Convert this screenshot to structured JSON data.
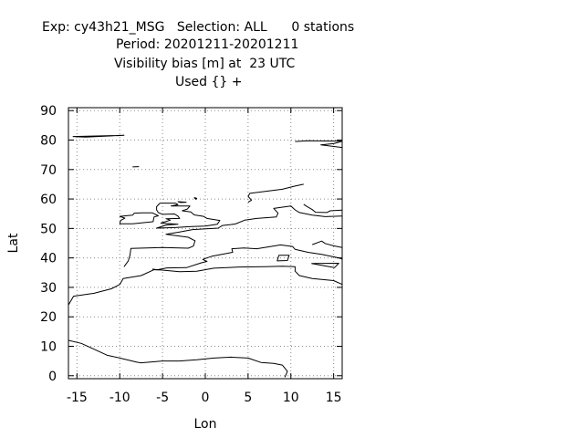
{
  "title": {
    "line1": "Exp: cy43h21_MSG   Selection: ALL      0 stations",
    "line2": "Period: 20201211-20201211",
    "line3": "Visibility bias [m] at  23 UTC",
    "line4": "Used {} +"
  },
  "chart_data": {
    "type": "scatter",
    "title": "Exp: cy43h21_MSG   Selection: ALL      0 stations",
    "subtitle": [
      "Period: 20201211-20201211",
      "Visibility bias [m] at  23 UTC",
      "Used {} +"
    ],
    "xlabel": "Lon",
    "ylabel": "Lat",
    "xlim": [
      -16,
      16
    ],
    "ylim": [
      -1,
      91
    ],
    "xticks": [
      -15,
      -10,
      -5,
      0,
      5,
      10,
      15
    ],
    "yticks": [
      0,
      10,
      20,
      30,
      40,
      50,
      60,
      70,
      80,
      90
    ],
    "grid": true,
    "series": [],
    "stations": 0,
    "coastlines": [
      [
        [
          -16,
          12
        ],
        [
          -14.5,
          11
        ],
        [
          -13,
          9
        ],
        [
          -11.5,
          7
        ],
        [
          -10,
          6
        ],
        [
          -8,
          4.6
        ],
        [
          -7.5,
          4.4
        ],
        [
          -5,
          5
        ],
        [
          -3,
          5
        ],
        [
          -1,
          5.4
        ],
        [
          1,
          6
        ],
        [
          3,
          6.3
        ],
        [
          5,
          6
        ],
        [
          6.5,
          4.5
        ],
        [
          8,
          4.2
        ],
        [
          9,
          3.6
        ],
        [
          9.6,
          1.5
        ],
        [
          9.3,
          -0.5
        ]
      ],
      [
        [
          -16,
          24
        ],
        [
          -15.4,
          27
        ],
        [
          -13,
          28
        ],
        [
          -11,
          29.5
        ],
        [
          -10,
          31
        ],
        [
          -9.6,
          33
        ],
        [
          -7.5,
          34
        ],
        [
          -6,
          36
        ],
        [
          -5.2,
          35.9
        ],
        [
          -3,
          35.3
        ],
        [
          -1,
          35.5
        ],
        [
          1,
          36.5
        ],
        [
          4,
          36.9
        ],
        [
          7,
          37
        ],
        [
          9,
          37.2
        ],
        [
          10.5,
          37
        ],
        [
          10.5,
          35.5
        ],
        [
          11,
          34
        ],
        [
          12.5,
          33
        ],
        [
          15,
          32.3
        ],
        [
          16,
          31
        ]
      ],
      [
        [
          -9.5,
          37
        ],
        [
          -9,
          39
        ],
        [
          -8.8,
          41
        ],
        [
          -8.7,
          43.2
        ],
        [
          -5,
          43.5
        ],
        [
          -2,
          43.3
        ],
        [
          -1.4,
          44
        ],
        [
          -1.2,
          45.8
        ],
        [
          -2,
          47
        ],
        [
          -4.6,
          48
        ],
        [
          -3,
          48.8
        ],
        [
          -1.5,
          49.6
        ],
        [
          1.5,
          50.1
        ],
        [
          2,
          51
        ],
        [
          3.5,
          51.5
        ],
        [
          4.6,
          52.8
        ],
        [
          6,
          53.4
        ],
        [
          8.3,
          53.9
        ],
        [
          8.5,
          55.2
        ],
        [
          8,
          56.8
        ],
        [
          10,
          57.6
        ],
        [
          10.5,
          56.3
        ],
        [
          11,
          55.4
        ],
        [
          12.5,
          54.5
        ],
        [
          14,
          54
        ],
        [
          16,
          54.2
        ]
      ],
      [
        [
          -6.2,
          36.2
        ],
        [
          -5.6,
          36
        ],
        [
          -4.5,
          36.6
        ],
        [
          -2.2,
          36.7
        ],
        [
          -0.5,
          38.3
        ],
        [
          0.2,
          38.8
        ],
        [
          -0.3,
          39.5
        ],
        [
          0.8,
          40.6
        ],
        [
          3.2,
          41.9
        ],
        [
          3.1,
          43.1
        ],
        [
          4.5,
          43.4
        ],
        [
          6,
          43.1
        ],
        [
          7.5,
          43.8
        ],
        [
          8.8,
          44.4
        ],
        [
          10.2,
          43.9
        ],
        [
          10.5,
          42.9
        ],
        [
          12,
          41.9
        ],
        [
          13.6,
          41.2
        ],
        [
          15.6,
          40
        ],
        [
          16,
          39.6
        ]
      ],
      [
        [
          12.5,
          44.5
        ],
        [
          13.6,
          45.7
        ],
        [
          14,
          44.9
        ],
        [
          15,
          44.1
        ],
        [
          16,
          43.5
        ]
      ],
      [
        [
          -5.3,
          58.6
        ],
        [
          -3.5,
          58.6
        ],
        [
          -3.2,
          58.1
        ],
        [
          -4,
          57.6
        ],
        [
          -1.8,
          57.6
        ],
        [
          -2.1,
          56.6
        ],
        [
          -2.7,
          56
        ],
        [
          -1.7,
          55.6
        ],
        [
          -1.3,
          54.6
        ],
        [
          -0.2,
          54.1
        ],
        [
          0.2,
          53.4
        ],
        [
          1.7,
          52.7
        ],
        [
          1.4,
          51.4
        ],
        [
          0,
          50.8
        ],
        [
          -1.9,
          50.6
        ],
        [
          -3.5,
          50.3
        ],
        [
          -5.7,
          50.1
        ],
        [
          -4.5,
          51.2
        ],
        [
          -3.2,
          51.4
        ],
        [
          -5.2,
          51.8
        ],
        [
          -4.1,
          52.8
        ],
        [
          -4.6,
          53.3
        ],
        [
          -3,
          53.4
        ],
        [
          -3.2,
          54.2
        ],
        [
          -3.6,
          54.9
        ],
        [
          -5,
          54.8
        ],
        [
          -5.5,
          55.4
        ],
        [
          -5.7,
          56.3
        ],
        [
          -5.7,
          57.4
        ],
        [
          -5.3,
          58.6
        ]
      ],
      [
        [
          -6.2,
          55.3
        ],
        [
          -5.5,
          54.3
        ],
        [
          -6,
          53.9
        ],
        [
          -6.1,
          52.3
        ],
        [
          -6.4,
          52.2
        ],
        [
          -8.5,
          51.6
        ],
        [
          -10,
          51.6
        ],
        [
          -9.9,
          52.7
        ],
        [
          -9.4,
          53.5
        ],
        [
          -10,
          54.1
        ],
        [
          -8.5,
          54.5
        ],
        [
          -8.3,
          55.2
        ],
        [
          -7.4,
          55.3
        ],
        [
          -6.2,
          55.3
        ]
      ],
      [
        [
          5,
          58.9
        ],
        [
          5.4,
          59.6
        ],
        [
          5,
          60.9
        ],
        [
          5.2,
          61.9
        ],
        [
          7,
          62.6
        ],
        [
          9,
          63.3
        ],
        [
          10.5,
          64.4
        ],
        [
          11.5,
          65
        ]
      ],
      [
        [
          11.5,
          58.2
        ],
        [
          11.8,
          57.6
        ],
        [
          12.5,
          56.4
        ],
        [
          12.9,
          55.5
        ],
        [
          14.2,
          55.4
        ],
        [
          14.6,
          56
        ],
        [
          16,
          56.2
        ]
      ],
      [
        [
          -15.5,
          81.2
        ],
        [
          -9.5,
          81.6
        ],
        [
          -14,
          81
        ],
        [
          -15.5,
          81.2
        ]
      ],
      [
        [
          10.5,
          79.5
        ],
        [
          12,
          79.8
        ],
        [
          16,
          79.6
        ],
        [
          15,
          78.8
        ],
        [
          13.5,
          78.4
        ],
        [
          16,
          77.5
        ]
      ],
      [
        [
          -2.2,
          58.9
        ],
        [
          -3.2,
          59.1
        ],
        [
          -2.9,
          58.8
        ],
        [
          -2.2,
          58.9
        ]
      ],
      [
        [
          -1.3,
          60.5
        ],
        [
          -1,
          60.2
        ],
        [
          -1.1,
          59.9
        ],
        [
          -1.3,
          60.5
        ]
      ],
      [
        [
          -8.5,
          70.9
        ],
        [
          -7.8,
          71
        ],
        [
          -8.5,
          70.9
        ]
      ],
      [
        [
          8.6,
          40.9
        ],
        [
          9.8,
          40.9
        ],
        [
          9.6,
          39.1
        ],
        [
          8.4,
          39
        ],
        [
          8.6,
          40.9
        ]
      ],
      [
        [
          12.4,
          38.1
        ],
        [
          15.6,
          38.2
        ],
        [
          15.1,
          36.7
        ],
        [
          12.4,
          38.1
        ]
      ]
    ]
  }
}
